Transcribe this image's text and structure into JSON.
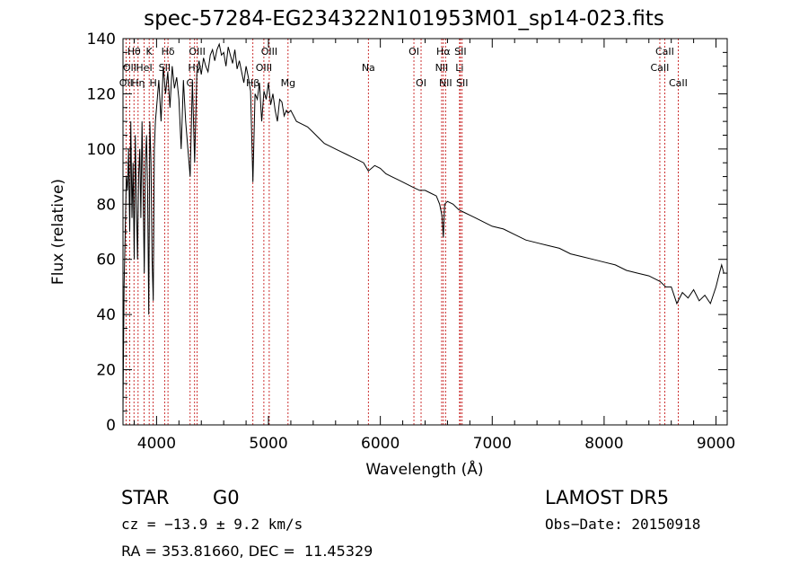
{
  "chart_data": {
    "type": "line",
    "title": "spec-57284-EG234322N101953M01_sp14-023.fits",
    "xlabel": "Wavelength (Å)",
    "ylabel": "Flux (relative)",
    "xlim": [
      3700,
      9100
    ],
    "ylim": [
      0,
      140
    ],
    "xticks": [
      "4000",
      "5000",
      "6000",
      "7000",
      "8000",
      "9000"
    ],
    "yticks": [
      "0",
      "20",
      "40",
      "60",
      "80",
      "100",
      "120",
      "140"
    ],
    "grid": false,
    "legend": "none",
    "colors": {
      "spectrum": "#000000",
      "line_markers": "#c00000"
    },
    "series": [
      {
        "x": [
          3700,
          3710,
          3720,
          3730,
          3740,
          3750,
          3760,
          3770,
          3780,
          3790,
          3800,
          3810,
          3820,
          3830,
          3840,
          3850,
          3860,
          3870,
          3880,
          3890,
          3900,
          3910,
          3920,
          3930,
          3940,
          3950,
          3960,
          3970,
          3980,
          3990,
          4000,
          4020,
          4040,
          4060,
          4080,
          4100,
          4120,
          4140,
          4160,
          4180,
          4200,
          4220,
          4240,
          4260,
          4280,
          4300,
          4320,
          4340,
          4360,
          4380,
          4400,
          4420,
          4440,
          4460,
          4480,
          4500,
          4520,
          4540,
          4560,
          4580,
          4600,
          4620,
          4640,
          4660,
          4680,
          4700,
          4720,
          4740,
          4760,
          4780,
          4800,
          4820,
          4840,
          4861,
          4880,
          4900,
          4920,
          4940,
          4960,
          4980,
          5000,
          5020,
          5040,
          5060,
          5080,
          5100,
          5120,
          5140,
          5160,
          5175,
          5200,
          5250,
          5300,
          5350,
          5400,
          5450,
          5500,
          5550,
          5600,
          5650,
          5700,
          5750,
          5800,
          5850,
          5893,
          5950,
          6000,
          6050,
          6100,
          6150,
          6200,
          6250,
          6300,
          6350,
          6400,
          6450,
          6500,
          6530,
          6550,
          6563,
          6575,
          6600,
          6650,
          6700,
          6750,
          6800,
          6850,
          6900,
          6950,
          7000,
          7100,
          7200,
          7300,
          7400,
          7500,
          7600,
          7700,
          7800,
          7900,
          8000,
          8100,
          8200,
          8300,
          8400,
          8450,
          8500,
          8550,
          8600,
          8650,
          8700,
          8750,
          8800,
          8850,
          8900,
          8950,
          9000,
          9030,
          9050,
          9070
        ],
        "y": [
          5,
          50,
          70,
          90,
          85,
          100,
          70,
          110,
          75,
          95,
          60,
          105,
          80,
          60,
          90,
          100,
          75,
          110,
          85,
          55,
          95,
          105,
          85,
          40,
          110,
          95,
          60,
          45,
          100,
          110,
          115,
          125,
          110,
          130,
          120,
          128,
          115,
          130,
          122,
          126,
          118,
          100,
          125,
          110,
          100,
          90,
          125,
          95,
          128,
          132,
          127,
          133,
          130,
          128,
          134,
          136,
          132,
          136,
          138,
          134,
          135,
          130,
          137,
          134,
          131,
          136,
          129,
          132,
          128,
          124,
          130,
          126,
          121,
          88,
          120,
          118,
          124,
          110,
          121,
          118,
          124,
          116,
          120,
          114,
          110,
          118,
          117,
          112,
          114,
          113,
          114,
          110,
          109,
          108,
          106,
          104,
          102,
          101,
          100,
          99,
          98,
          97,
          96,
          95,
          92,
          94,
          93,
          91,
          90,
          89,
          88,
          87,
          86,
          85,
          85,
          84,
          83,
          80,
          76,
          68,
          80,
          81,
          80,
          78,
          77,
          76,
          75,
          74,
          73,
          72,
          71,
          69,
          67,
          66,
          65,
          64,
          62,
          61,
          60,
          59,
          58,
          56,
          55,
          54,
          53,
          52,
          50,
          50,
          44,
          48,
          46,
          49,
          45,
          47,
          44,
          50,
          55,
          58,
          55
        ]
      }
    ],
    "line_markers": [
      {
        "x": 3727,
        "label": "OII",
        "row": 3
      },
      {
        "x": 3760,
        "label": "OII",
        "row": 2
      },
      {
        "x": 3798,
        "label": "Hθ",
        "row": 1
      },
      {
        "x": 3835,
        "label": "Hη",
        "row": 3
      },
      {
        "x": 3889,
        "label": "HeI",
        "row": 2
      },
      {
        "x": 3934,
        "label": "K",
        "row": 1
      },
      {
        "x": 3970,
        "label": "H",
        "row": 3
      },
      {
        "x": 4072,
        "label": "SII",
        "row": 2
      },
      {
        "x": 4102,
        "label": "Hδ",
        "row": 1
      },
      {
        "x": 4300,
        "label": "G",
        "row": 3
      },
      {
        "x": 4340,
        "label": "Hγ",
        "row": 2
      },
      {
        "x": 4363,
        "label": "OIII",
        "row": 1
      },
      {
        "x": 4861,
        "label": "Hβ",
        "row": 3
      },
      {
        "x": 4959,
        "label": "OIII",
        "row": 2
      },
      {
        "x": 5007,
        "label": "OIII",
        "row": 1
      },
      {
        "x": 5175,
        "label": "Mg",
        "row": 3
      },
      {
        "x": 5893,
        "label": "Na",
        "row": 2
      },
      {
        "x": 6300,
        "label": "OI",
        "row": 1
      },
      {
        "x": 6364,
        "label": "OI",
        "row": 3
      },
      {
        "x": 6548,
        "label": "NII",
        "row": 2
      },
      {
        "x": 6563,
        "label": "Hα",
        "row": 1
      },
      {
        "x": 6583,
        "label": "NII",
        "row": 3
      },
      {
        "x": 6708,
        "label": "Li",
        "row": 2
      },
      {
        "x": 6716,
        "label": "SII",
        "row": 1
      },
      {
        "x": 6731,
        "label": "SII",
        "row": 3
      },
      {
        "x": 8498,
        "label": "CaII",
        "row": 2
      },
      {
        "x": 8542,
        "label": "CaII",
        "row": 1
      },
      {
        "x": 8662,
        "label": "CaII",
        "row": 3
      }
    ]
  },
  "info": {
    "object_class": "STAR",
    "subclass": "G0",
    "survey": "LAMOST DR5",
    "cz": "cz = −13.9 ± 9.2 km/s",
    "obs_date": "Obs−Date: 20150918",
    "coords": "RA = 353.81660, DEC =  11.45329"
  }
}
